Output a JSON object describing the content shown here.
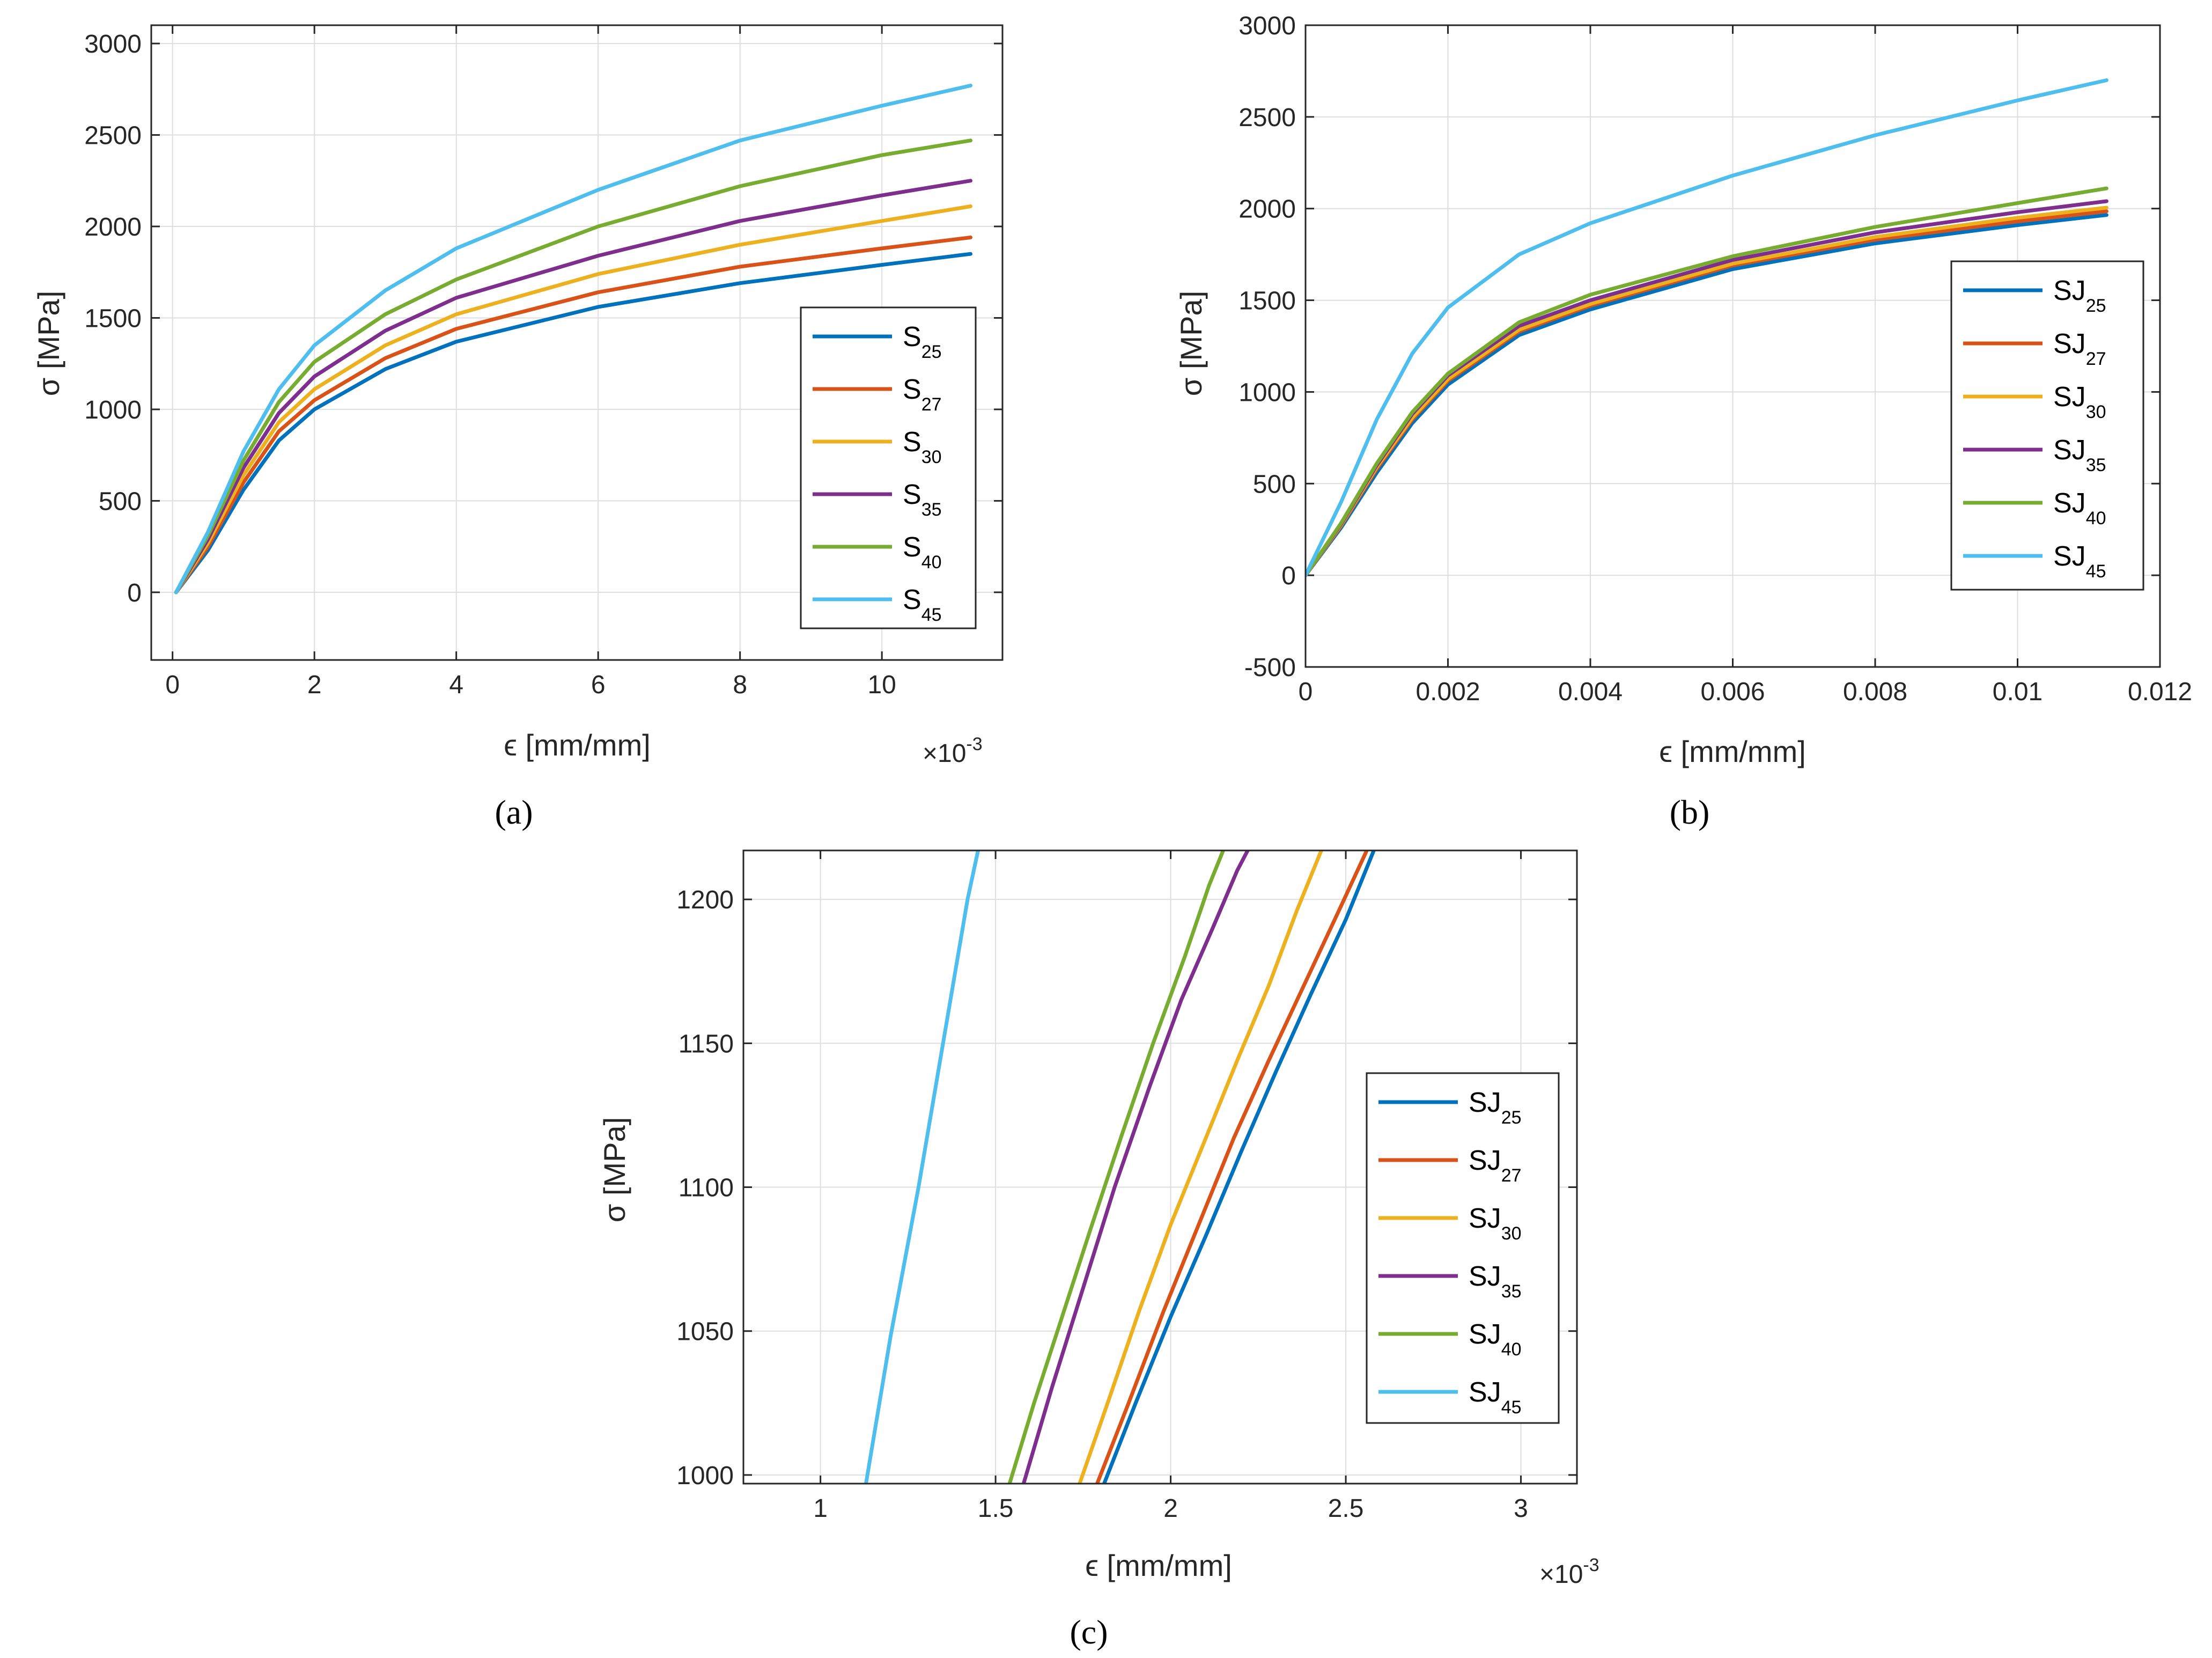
{
  "colors": {
    "c25": "#0072BD",
    "c27": "#D95319",
    "c30": "#EDB120",
    "c35": "#7E2F8E",
    "c40": "#77AC30",
    "c45": "#4DBEEE"
  },
  "chart_data": [
    {
      "panel": "(a)",
      "type": "line",
      "xlabel": "ϵ [mm/mm]",
      "ylabel": "σ [MPa]",
      "x_multiplier": "×10",
      "x_exponent": "-3",
      "xlim": [
        -0.3,
        11.7
      ],
      "ylim": [
        -370,
        3100
      ],
      "xticks": [
        0,
        2,
        4,
        6,
        8,
        10
      ],
      "xtick_labels": [
        "0",
        "2",
        "4",
        "6",
        "8",
        "10"
      ],
      "yticks": [
        0,
        500,
        1000,
        1500,
        2000,
        2500,
        3000
      ],
      "ytick_labels": [
        "0",
        "500",
        "1000",
        "1500",
        "2000",
        "2500",
        "3000"
      ],
      "legend": "right",
      "series": [
        {
          "name": "S",
          "sub": "25",
          "color_key": "c25",
          "x": [
            0.05,
            0.5,
            1,
            1.5,
            2,
            3,
            4,
            6,
            8,
            10,
            11.25
          ],
          "y": [
            0,
            230,
            560,
            830,
            1000,
            1220,
            1370,
            1560,
            1690,
            1790,
            1850
          ]
        },
        {
          "name": "S",
          "sub": "27",
          "color_key": "c27",
          "x": [
            0.05,
            0.5,
            1,
            1.5,
            2,
            3,
            4,
            6,
            8,
            10,
            11.25
          ],
          "y": [
            0,
            250,
            600,
            880,
            1050,
            1280,
            1440,
            1640,
            1780,
            1880,
            1940
          ]
        },
        {
          "name": "S",
          "sub": "30",
          "color_key": "c30",
          "x": [
            0.05,
            0.5,
            1,
            1.5,
            2,
            3,
            4,
            6,
            8,
            10,
            11.25
          ],
          "y": [
            0,
            270,
            640,
            930,
            1110,
            1350,
            1520,
            1740,
            1900,
            2030,
            2110
          ]
        },
        {
          "name": "S",
          "sub": "35",
          "color_key": "c35",
          "x": [
            0.05,
            0.5,
            1,
            1.5,
            2,
            3,
            4,
            6,
            8,
            10,
            11.25
          ],
          "y": [
            0,
            290,
            680,
            980,
            1180,
            1430,
            1610,
            1840,
            2030,
            2170,
            2250
          ]
        },
        {
          "name": "S",
          "sub": "40",
          "color_key": "c40",
          "x": [
            0.05,
            0.5,
            1,
            1.5,
            2,
            3,
            4,
            6,
            8,
            10,
            11.25
          ],
          "y": [
            0,
            310,
            720,
            1040,
            1260,
            1520,
            1710,
            2000,
            2220,
            2390,
            2470
          ]
        },
        {
          "name": "S",
          "sub": "45",
          "color_key": "c45",
          "x": [
            0.05,
            0.5,
            1,
            1.5,
            2,
            3,
            4,
            6,
            8,
            10,
            11.25
          ],
          "y": [
            0,
            330,
            770,
            1110,
            1350,
            1650,
            1880,
            2200,
            2470,
            2660,
            2770
          ]
        }
      ]
    },
    {
      "panel": "(b)",
      "type": "line",
      "xlabel": "ϵ [mm/mm]",
      "ylabel": "σ [MPa]",
      "xlim": [
        0,
        0.012
      ],
      "ylim": [
        -500,
        3000
      ],
      "xticks": [
        0,
        0.002,
        0.004,
        0.006,
        0.008,
        0.01,
        0.012
      ],
      "xtick_labels": [
        "0",
        "0.002",
        "0.004",
        "0.006",
        "0.008",
        "0.01",
        "0.012"
      ],
      "yticks": [
        -500,
        0,
        500,
        1000,
        1500,
        2000,
        2500,
        3000
      ],
      "ytick_labels": [
        "-500",
        "0",
        "500",
        "1000",
        "1500",
        "2000",
        "2500",
        "3000"
      ],
      "legend": "right",
      "series": [
        {
          "name": "SJ",
          "sub": "25",
          "color_key": "c25",
          "x": [
            0,
            0.0005,
            0.001,
            0.0015,
            0.002,
            0.003,
            0.004,
            0.006,
            0.008,
            0.01,
            0.01125
          ],
          "y": [
            0,
            260,
            560,
            830,
            1040,
            1310,
            1450,
            1670,
            1810,
            1910,
            1965
          ]
        },
        {
          "name": "SJ",
          "sub": "27",
          "color_key": "c27",
          "x": [
            0,
            0.0005,
            0.001,
            0.0015,
            0.002,
            0.003,
            0.004,
            0.006,
            0.008,
            0.01,
            0.01125
          ],
          "y": [
            0,
            270,
            580,
            850,
            1060,
            1330,
            1470,
            1690,
            1830,
            1930,
            1985
          ]
        },
        {
          "name": "SJ",
          "sub": "30",
          "color_key": "c30",
          "x": [
            0,
            0.0005,
            0.001,
            0.0015,
            0.002,
            0.003,
            0.004,
            0.006,
            0.008,
            0.01,
            0.01125
          ],
          "y": [
            0,
            275,
            590,
            860,
            1070,
            1340,
            1480,
            1700,
            1845,
            1950,
            2005
          ]
        },
        {
          "name": "SJ",
          "sub": "35",
          "color_key": "c35",
          "x": [
            0,
            0.0005,
            0.001,
            0.0015,
            0.002,
            0.003,
            0.004,
            0.006,
            0.008,
            0.01,
            0.01125
          ],
          "y": [
            0,
            280,
            600,
            880,
            1090,
            1360,
            1500,
            1720,
            1870,
            1980,
            2040
          ]
        },
        {
          "name": "SJ",
          "sub": "40",
          "color_key": "c40",
          "x": [
            0,
            0.0005,
            0.001,
            0.0015,
            0.002,
            0.003,
            0.004,
            0.006,
            0.008,
            0.01,
            0.01125
          ],
          "y": [
            0,
            285,
            610,
            890,
            1100,
            1380,
            1530,
            1740,
            1900,
            2030,
            2110
          ]
        },
        {
          "name": "SJ",
          "sub": "45",
          "color_key": "c45",
          "x": [
            0,
            0.0005,
            0.001,
            0.0015,
            0.002,
            0.003,
            0.004,
            0.006,
            0.008,
            0.01,
            0.01125
          ],
          "y": [
            0,
            400,
            850,
            1210,
            1460,
            1750,
            1920,
            2180,
            2400,
            2590,
            2700
          ]
        }
      ]
    },
    {
      "panel": "(c)",
      "type": "line",
      "xlabel": "ϵ [mm/mm]",
      "ylabel": "σ [MPa]",
      "x_multiplier": "×10",
      "x_exponent": "-3",
      "xlim": [
        0.78,
        3.16
      ],
      "ylim": [
        997,
        1217
      ],
      "xticks": [
        1,
        1.5,
        2,
        2.5,
        3
      ],
      "xtick_labels": [
        "1",
        "1.5",
        "2",
        "2.5",
        "3"
      ],
      "yticks": [
        1000,
        1050,
        1100,
        1150,
        1200
      ],
      "ytick_labels": [
        "1000",
        "1050",
        "1100",
        "1150",
        "1200"
      ],
      "legend": "right",
      "series": [
        {
          "name": "SJ",
          "sub": "25",
          "color_key": "c25",
          "x": [
            1.81,
            1.9,
            2.0,
            2.1,
            2.2,
            2.3,
            2.4,
            2.5,
            2.58
          ],
          "y": [
            997,
            1025,
            1055,
            1083,
            1112,
            1140,
            1167,
            1193,
            1217
          ]
        },
        {
          "name": "SJ",
          "sub": "27",
          "color_key": "c27",
          "x": [
            1.79,
            1.88,
            1.98,
            2.08,
            2.18,
            2.28,
            2.38,
            2.48,
            2.56
          ],
          "y": [
            997,
            1025,
            1057,
            1087,
            1117,
            1144,
            1170,
            1196,
            1217
          ]
        },
        {
          "name": "SJ",
          "sub": "30",
          "color_key": "c30",
          "x": [
            1.74,
            1.82,
            1.91,
            2.0,
            2.1,
            2.19,
            2.28,
            2.36,
            2.43
          ],
          "y": [
            997,
            1025,
            1057,
            1087,
            1117,
            1144,
            1170,
            1196,
            1217
          ]
        },
        {
          "name": "SJ",
          "sub": "35",
          "color_key": "c35",
          "x": [
            1.58,
            1.66,
            1.75,
            1.84,
            1.94,
            2.03,
            2.12,
            2.19,
            2.22
          ],
          "y": [
            997,
            1030,
            1065,
            1100,
            1135,
            1165,
            1190,
            1210,
            1217
          ]
        },
        {
          "name": "SJ",
          "sub": "40",
          "color_key": "c40",
          "x": [
            1.54,
            1.61,
            1.69,
            1.77,
            1.86,
            1.95,
            2.04,
            2.11,
            2.15
          ],
          "y": [
            997,
            1025,
            1055,
            1085,
            1118,
            1150,
            1180,
            1205,
            1217
          ]
        },
        {
          "name": "SJ",
          "sub": "45",
          "color_key": "c45",
          "x": [
            1.13,
            1.2,
            1.28,
            1.35,
            1.42,
            1.45
          ],
          "y": [
            997,
            1048,
            1100,
            1150,
            1200,
            1217
          ]
        }
      ]
    }
  ]
}
